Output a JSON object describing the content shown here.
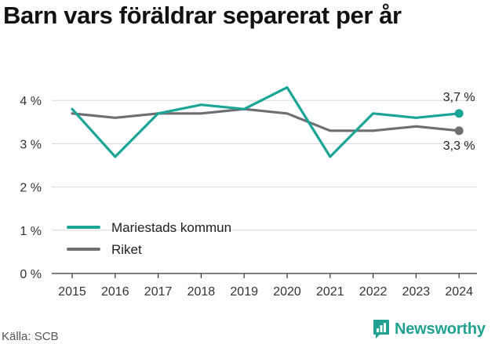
{
  "title": "Barn vars föräldrar separerat per år",
  "source": "Källa: SCB",
  "brand": {
    "name": "Newsworthy",
    "icon": "newsworthy-logo-icon"
  },
  "colors": {
    "series_0": "#1aa596",
    "series_1": "#6e6e73",
    "grid": "#d9d9d9",
    "axis": "#333333"
  },
  "chart_data": {
    "type": "line",
    "x": [
      "2015",
      "2016",
      "2017",
      "2018",
      "2019",
      "2020",
      "2021",
      "2022",
      "2023",
      "2024"
    ],
    "series": [
      {
        "name": "Mariestads kommun",
        "values": [
          3.8,
          2.7,
          3.7,
          3.9,
          3.8,
          4.3,
          2.7,
          3.7,
          3.6,
          3.7
        ],
        "end_label": "3,7 %"
      },
      {
        "name": "Riket",
        "values": [
          3.7,
          3.6,
          3.7,
          3.7,
          3.8,
          3.7,
          3.3,
          3.3,
          3.4,
          3.3
        ],
        "end_label": "3,3 %"
      }
    ],
    "yticks": [
      0,
      1,
      2,
      3,
      4
    ],
    "ytick_labels": [
      "0 %",
      "1 %",
      "2 %",
      "3 %",
      "4 %"
    ],
    "ylim": [
      0,
      5
    ],
    "grid": true,
    "legend": "bottom-left"
  }
}
